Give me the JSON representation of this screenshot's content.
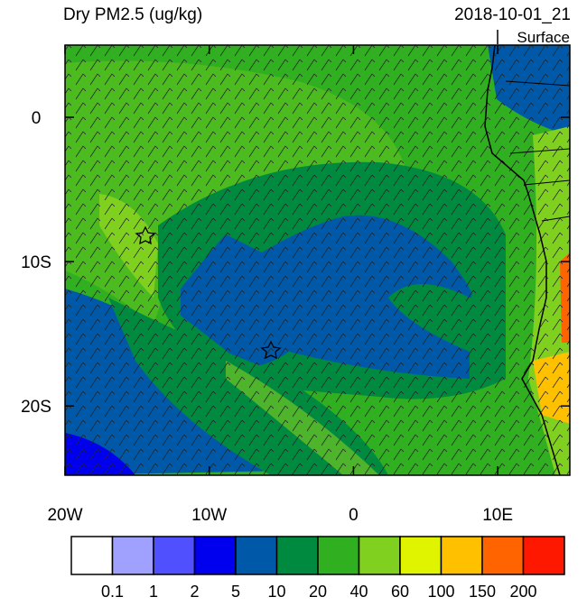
{
  "header": {
    "title": "Dry PM2.5 (ug/kg)",
    "time": "2018-10-01_21",
    "level": "Surface"
  },
  "map": {
    "lon_range": [
      -20,
      15
    ],
    "lat_range": [
      5,
      -24.8
    ],
    "lon_ticks": [
      {
        "value": -20,
        "label": "20W"
      },
      {
        "value": -10,
        "label": "10W"
      },
      0,
      {
        "value": 10,
        "label": "10E"
      }
    ],
    "lat_ticks": [
      0,
      {
        "value": -10,
        "label": "10S"
      },
      {
        "value": -20,
        "label": "20S"
      }
    ]
  },
  "colorbar": {
    "levels": [
      0.1,
      1,
      2,
      5,
      10,
      20,
      40,
      60,
      100,
      150,
      200
    ],
    "colors": [
      "#ffffff",
      "#a0a0ff",
      "#5050ff",
      "#0000ee",
      "#0058a8",
      "#008a40",
      "#30b020",
      "#80d020",
      "#e0f400",
      "#ffc000",
      "#ff6400",
      "#ff1800"
    ]
  }
}
